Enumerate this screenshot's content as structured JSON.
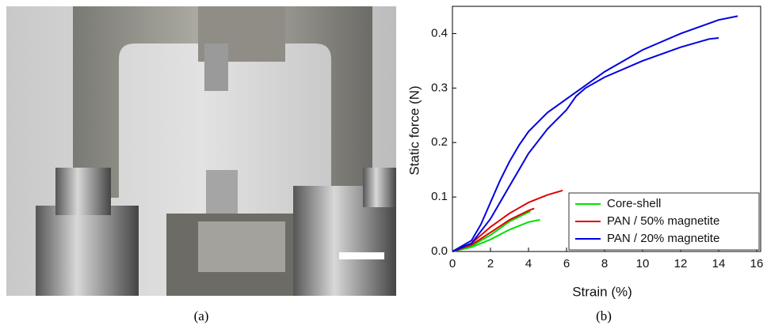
{
  "chart_data": {
    "type": "line",
    "x_label": "Strain (%)",
    "y_label": "Static force (N)",
    "xlim": [
      0,
      16
    ],
    "xticks": [
      0,
      2,
      4,
      6,
      8,
      10,
      12,
      14,
      16
    ],
    "ylim": [
      0,
      0.45
    ],
    "yticks": [
      {
        "value": 0,
        "label": "0.0"
      },
      0.1,
      0.2,
      0.3,
      0.4
    ],
    "legend": "lower right",
    "series": [
      {
        "name": "Core-shell",
        "color": "#00e000",
        "curves": [
          {
            "x": [
              0,
              1,
              2,
              3,
              4,
              4.1
            ],
            "values": [
              0,
              0.01,
              0.03,
              0.055,
              0.072,
              0.074
            ]
          },
          {
            "x": [
              0,
              1,
              2,
              3,
              4,
              4.6
            ],
            "values": [
              0,
              0.008,
              0.022,
              0.04,
              0.054,
              0.058
            ]
          }
        ]
      },
      {
        "name": "PAN / 50% magnetite",
        "color": "#e00000",
        "curves": [
          {
            "x": [
              0,
              1,
              2,
              3,
              4,
              5,
              5.8
            ],
            "values": [
              0,
              0.015,
              0.045,
              0.07,
              0.09,
              0.104,
              0.112
            ]
          },
          {
            "x": [
              0,
              1,
              2,
              3,
              4,
              4.3
            ],
            "values": [
              0,
              0.012,
              0.035,
              0.058,
              0.075,
              0.079
            ]
          }
        ]
      },
      {
        "name": "PAN / 20% magnetite",
        "color": "#0000e0",
        "curves": [
          {
            "x": [
              0,
              1,
              1.5,
              2,
              2.5,
              3,
              3.5,
              4,
              5,
              6,
              7,
              8,
              10,
              12,
              14,
              15
            ],
            "values": [
              0,
              0.02,
              0.05,
              0.09,
              0.13,
              0.165,
              0.195,
              0.22,
              0.255,
              0.28,
              0.305,
              0.33,
              0.37,
              0.4,
              0.425,
              0.432
            ]
          },
          {
            "x": [
              0,
              1,
              2,
              2.5,
              3,
              3.5,
              4,
              5,
              6,
              6.5,
              7,
              8,
              10,
              12,
              13.5,
              14
            ],
            "values": [
              0,
              0.015,
              0.06,
              0.09,
              0.12,
              0.15,
              0.18,
              0.225,
              0.26,
              0.285,
              0.3,
              0.32,
              0.35,
              0.375,
              0.39,
              0.392
            ]
          }
        ]
      }
    ]
  },
  "panel_labels": [
    "(a)",
    "(b)"
  ]
}
